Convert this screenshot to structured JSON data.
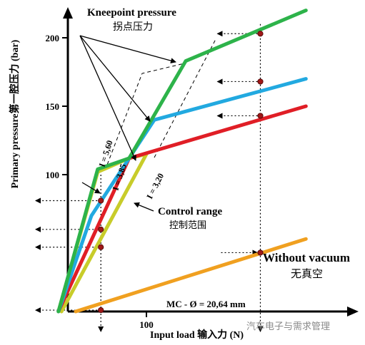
{
  "chart_data": {
    "type": "line",
    "ylabel": "Primary pressure第一腔压力 (bar)",
    "xlabel": "Input load 输入力 (N)",
    "x_ticks": [
      100
    ],
    "y_ticks": [
      100,
      150,
      200
    ],
    "series": [
      {
        "name": "",
        "color": "#2db34a",
        "points": [
          [
            -12,
            0
          ],
          [
            38,
            104
          ],
          [
            78,
            112
          ],
          [
            150,
            183
          ],
          [
            303,
            220
          ]
        ]
      },
      {
        "name": "",
        "color": "#22a9e0",
        "points": [
          [
            -12,
            0
          ],
          [
            30,
            70
          ],
          [
            78,
            112
          ],
          [
            110,
            140
          ],
          [
            303,
            170
          ]
        ]
      },
      {
        "name": "",
        "color": "#e01e26",
        "points": [
          [
            -12,
            0
          ],
          [
            78,
            112
          ],
          [
            303,
            150
          ]
        ]
      },
      {
        "name": "",
        "color": "#c8cc2a",
        "points": [
          [
            -12,
            0
          ],
          [
            38,
            102
          ],
          [
            78,
            112
          ],
          [
            100,
            115
          ],
          [
            -8,
            0
          ]
        ]
      },
      {
        "name": "Without vacuum",
        "color": "#f0a020",
        "points": [
          [
            10,
            0
          ],
          [
            303,
            53
          ]
        ]
      }
    ],
    "slope_labels": [
      "I = 5,60",
      "I = 3,85",
      "I = 3,20"
    ],
    "dotted_levels": [
      203,
      168,
      143,
      81,
      60,
      47,
      1
    ],
    "dot_points": [
      [
        42,
        81
      ],
      [
        42,
        60
      ],
      [
        42,
        47
      ],
      [
        42,
        1
      ],
      [
        245,
        203
      ],
      [
        245,
        168
      ],
      [
        245,
        143
      ],
      [
        245,
        43
      ]
    ],
    "annotations": {
      "kneepoint_en": "Kneepoint pressure",
      "kneepoint_cn": "拐点压力",
      "control_en": "Control range",
      "control_cn": "控制范围",
      "vacuum_en": "Without vacuum",
      "vacuum_cn": "无真空",
      "mc": "MC - Ø = 20,64 mm"
    },
    "watermark": "汽车电子与需求管理",
    "grid": false,
    "legend": "none"
  }
}
